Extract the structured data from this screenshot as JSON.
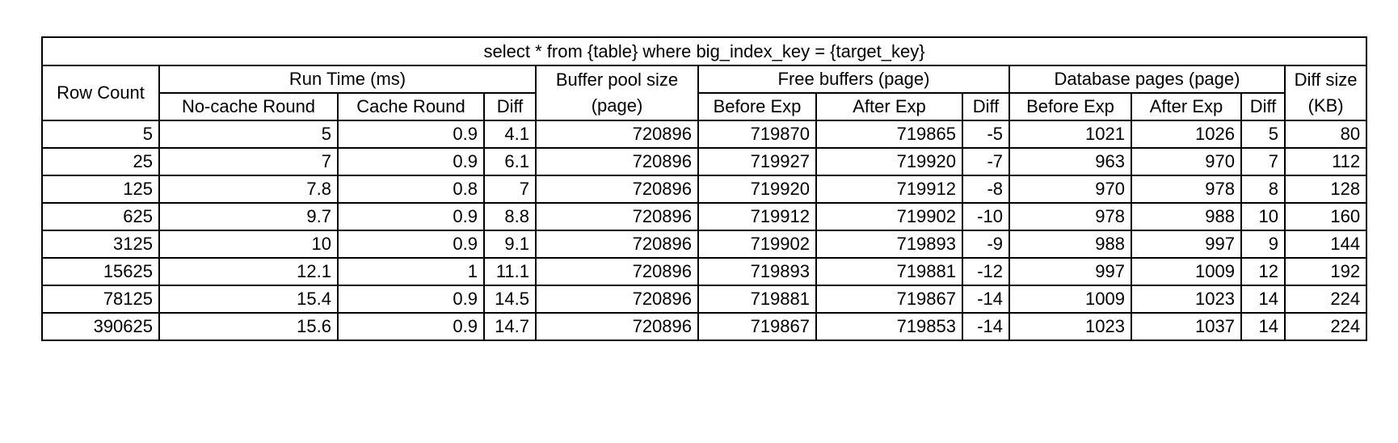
{
  "table": {
    "caption": "select * from {table} where big_index_key = {target_key}",
    "headers": {
      "row_count": "Row Count",
      "run_time": "Run Time (ms)",
      "no_cache_round": "No-cache Round",
      "cache_round": "Cache Round",
      "run_time_diff": "Diff",
      "buffer_pool_size_line1": "Buffer pool size",
      "buffer_pool_size_line2": "(page)",
      "free_buffers": "Free buffers (page)",
      "free_before": "Before Exp",
      "free_after": "After Exp",
      "free_diff": "Diff",
      "database_pages": "Database pages (page)",
      "db_before": "Before Exp",
      "db_after": "After Exp",
      "db_diff": "Diff",
      "diff_size_line1": "Diff size",
      "diff_size_line2": "(KB)"
    },
    "rows": [
      [
        "5",
        "5",
        "0.9",
        "4.1",
        "720896",
        "719870",
        "719865",
        "-5",
        "1021",
        "1026",
        "5",
        "80"
      ],
      [
        "25",
        "7",
        "0.9",
        "6.1",
        "720896",
        "719927",
        "719920",
        "-7",
        "963",
        "970",
        "7",
        "112"
      ],
      [
        "125",
        "7.8",
        "0.8",
        "7",
        "720896",
        "719920",
        "719912",
        "-8",
        "970",
        "978",
        "8",
        "128"
      ],
      [
        "625",
        "9.7",
        "0.9",
        "8.8",
        "720896",
        "719912",
        "719902",
        "-10",
        "978",
        "988",
        "10",
        "160"
      ],
      [
        "3125",
        "10",
        "0.9",
        "9.1",
        "720896",
        "719902",
        "719893",
        "-9",
        "988",
        "997",
        "9",
        "144"
      ],
      [
        "15625",
        "12.1",
        "1",
        "11.1",
        "720896",
        "719893",
        "719881",
        "-12",
        "997",
        "1009",
        "12",
        "192"
      ],
      [
        "78125",
        "15.4",
        "0.9",
        "14.5",
        "720896",
        "719881",
        "719867",
        "-14",
        "1009",
        "1023",
        "14",
        "224"
      ],
      [
        "390625",
        "15.6",
        "0.9",
        "14.7",
        "720896",
        "719867",
        "719853",
        "-14",
        "1023",
        "1037",
        "14",
        "224"
      ]
    ]
  }
}
